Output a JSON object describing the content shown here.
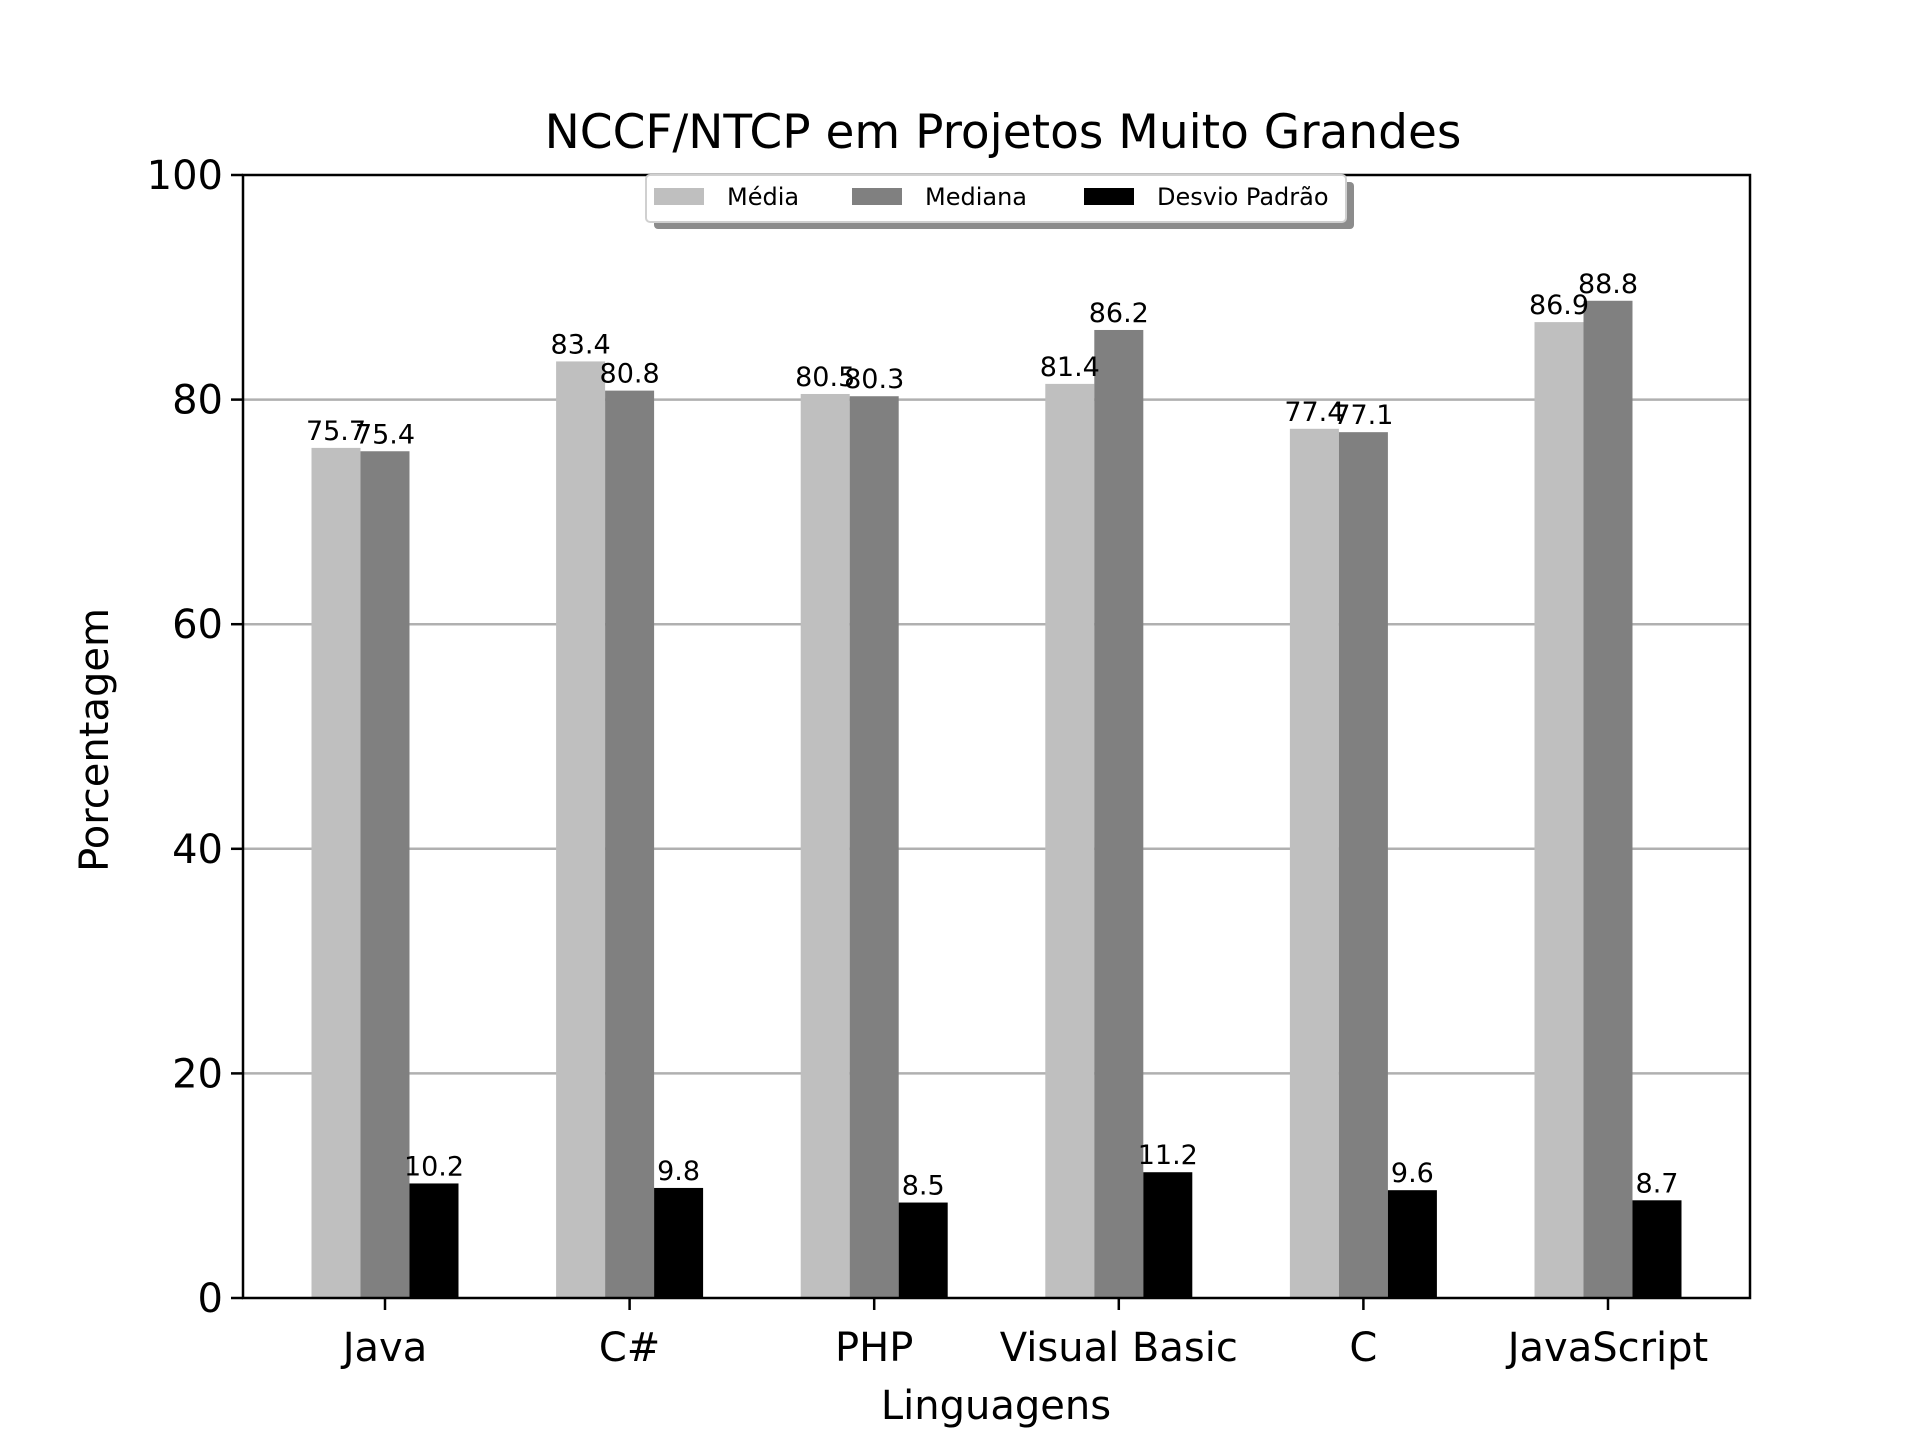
{
  "chart_data": {
    "type": "bar",
    "title": "NCCF/NTCP em Projetos Muito Grandes",
    "xlabel": "Linguagens",
    "ylabel": "Porcentagem",
    "categories": [
      "Java",
      "C#",
      "PHP",
      "Visual Basic",
      "C",
      "JavaScript"
    ],
    "series": [
      {
        "name": "Média",
        "color": "#bfbfbf",
        "values": [
          75.7,
          83.4,
          80.5,
          81.4,
          77.4,
          86.9
        ]
      },
      {
        "name": "Mediana",
        "color": "#808080",
        "values": [
          75.4,
          80.8,
          80.3,
          86.2,
          77.1,
          88.8
        ]
      },
      {
        "name": "Desvio Padrão",
        "color": "#000000",
        "values": [
          10.2,
          9.8,
          8.5,
          11.2,
          9.6,
          8.7
        ]
      }
    ],
    "ylim": [
      0,
      100
    ],
    "yticks": [
      0,
      20,
      40,
      60,
      80,
      100
    ],
    "grid": "horizontal",
    "grid_color": "#b0b0b0",
    "legend_position": "upper-center"
  }
}
